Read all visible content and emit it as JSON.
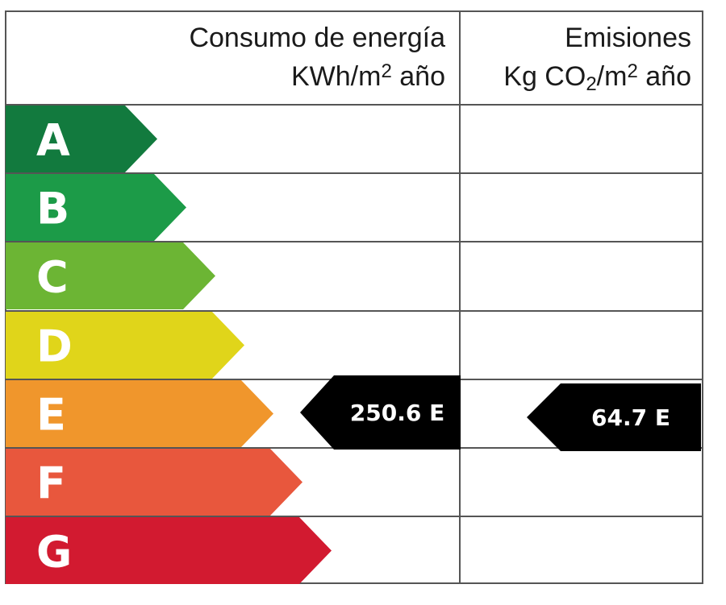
{
  "header": {
    "energy": {
      "title": "Consumo de energía",
      "unit_prefix": "KWh/m",
      "unit_sup": "2",
      "unit_suffix": " año"
    },
    "emissions": {
      "title": "Emisiones",
      "unit_prefix": "Kg CO",
      "unit_sub": "2",
      "unit_mid": "/m",
      "unit_sup": "2",
      "unit_suffix": " año"
    }
  },
  "bands": [
    {
      "letter": "A",
      "color": "#127a3e"
    },
    {
      "letter": "B",
      "color": "#1c9b48"
    },
    {
      "letter": "C",
      "color": "#6cb534"
    },
    {
      "letter": "D",
      "color": "#e0d51a"
    },
    {
      "letter": "E",
      "color": "#f0962c"
    },
    {
      "letter": "F",
      "color": "#e8573d"
    },
    {
      "letter": "G",
      "color": "#d21a30"
    }
  ],
  "energy_rating": {
    "text": "250.6 E",
    "band": "E",
    "color": "#000000"
  },
  "emissions_rating": {
    "text": "64.7 E",
    "band": "E",
    "color": "#000000"
  }
}
